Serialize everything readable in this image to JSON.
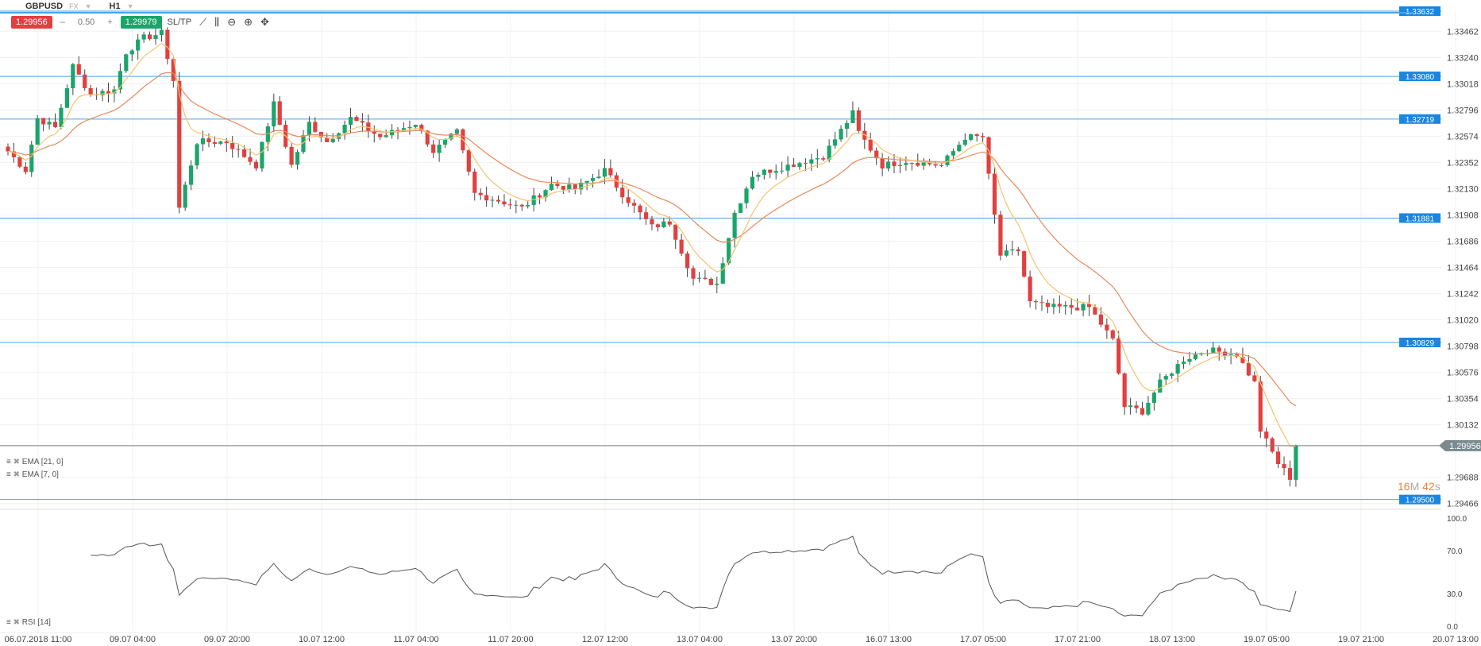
{
  "header": {
    "symbol": "GBPUSD",
    "market": "FX",
    "timeframe": "H1"
  },
  "toolbar": {
    "bid": "1.29956",
    "spread_minus": "–",
    "spread": "0.50",
    "spread_plus": "+",
    "ask": "1.29979",
    "sltp": "SL/TP",
    "tools": [
      "line-chart-icon",
      "candles-icon",
      "zoom-out-icon",
      "zoom-in-icon",
      "move-icon"
    ]
  },
  "indicators": {
    "ema21": "EMA [21, 0]",
    "ema7": "EMA [7, 0]",
    "rsi": "RSI [14]"
  },
  "timer": {
    "m": "16",
    "mu": "M",
    "s": "42",
    "su": "s"
  },
  "colors": {
    "up": "#1aa56b",
    "down": "#e0403f",
    "level": "#4da3e6",
    "ema7": "#f5c26b",
    "ema21": "#e8895a",
    "rsi": "#555555"
  },
  "chart_data": {
    "type": "candlestick",
    "symbol": "GBPUSD",
    "timeframe": "H1",
    "price_ticks": [
      "1.33462",
      "1.33240",
      "1.33018",
      "1.32796",
      "1.32574",
      "1.32352",
      "1.32130",
      "1.31908",
      "1.31686",
      "1.31464",
      "1.31242",
      "1.31020",
      "1.30798",
      "1.30576",
      "1.30354",
      "1.30132",
      "1.29688",
      "1.29466"
    ],
    "levels": [
      "1.33632",
      "1.33080",
      "1.32719",
      "1.31881",
      "1.30829",
      "1.29500"
    ],
    "current_price": "1.29956",
    "time_ticks": [
      "06.07.2018 11:00",
      "09.07 04:00",
      "09.07 20:00",
      "10.07 12:00",
      "11.07 04:00",
      "11.07 20:00",
      "12.07 12:00",
      "13.07 04:00",
      "13.07 20:00",
      "16.07 13:00",
      "17.07 05:00",
      "17.07 21:00",
      "18.07 13:00",
      "19.07 05:00",
      "19.07 21:00",
      "20.07 13:00"
    ],
    "rsi_ticks": [
      "100.0",
      "70.0",
      "30.0",
      "0.0"
    ],
    "close_anchors": [
      [
        0,
        1.32446
      ],
      [
        3,
        1.32286
      ],
      [
        5,
        1.32726
      ],
      [
        8,
        1.32646
      ],
      [
        11,
        1.33166
      ],
      [
        14,
        1.32926
      ],
      [
        18,
        1.32966
      ],
      [
        20,
        1.33286
      ],
      [
        23,
        1.33406
      ],
      [
        26,
        1.33446
      ],
      [
        28,
        1.33046
      ],
      [
        29,
        1.31966
      ],
      [
        32,
        1.32526
      ],
      [
        37,
        1.32526
      ],
      [
        42,
        1.32326
      ],
      [
        45,
        1.32846
      ],
      [
        48,
        1.32326
      ],
      [
        51,
        1.32686
      ],
      [
        54,
        1.32526
      ],
      [
        58,
        1.32726
      ],
      [
        63,
        1.32566
      ],
      [
        69,
        1.32686
      ],
      [
        72,
        1.32446
      ],
      [
        76,
        1.32606
      ],
      [
        79,
        1.32086
      ],
      [
        82,
        1.32046
      ],
      [
        87,
        1.31966
      ],
      [
        92,
        1.32166
      ],
      [
        96,
        1.32126
      ],
      [
        101,
        1.32286
      ],
      [
        104,
        1.32086
      ],
      [
        109,
        1.31806
      ],
      [
        112,
        1.31846
      ],
      [
        116,
        1.31366
      ],
      [
        120,
        1.31326
      ],
      [
        123,
        1.31926
      ],
      [
        126,
        1.32246
      ],
      [
        132,
        1.32326
      ],
      [
        138,
        1.32406
      ],
      [
        143,
        1.32766
      ],
      [
        144,
        1.32606
      ],
      [
        148,
        1.32326
      ],
      [
        152,
        1.32366
      ],
      [
        158,
        1.32326
      ],
      [
        162,
        1.32566
      ],
      [
        165,
        1.32566
      ],
      [
        168,
        1.31566
      ],
      [
        171,
        1.31606
      ],
      [
        173,
        1.31166
      ],
      [
        176,
        1.31126
      ],
      [
        183,
        1.31126
      ],
      [
        187,
        1.30846
      ],
      [
        189,
        1.30286
      ],
      [
        192,
        1.30246
      ],
      [
        195,
        1.30486
      ],
      [
        199,
        1.30686
      ],
      [
        203,
        1.30766
      ],
      [
        208,
        1.30726
      ],
      [
        211,
        1.30486
      ],
      [
        212,
        1.30086
      ],
      [
        215,
        1.29806
      ],
      [
        217,
        1.29686
      ],
      [
        218,
        1.29956
      ]
    ]
  }
}
